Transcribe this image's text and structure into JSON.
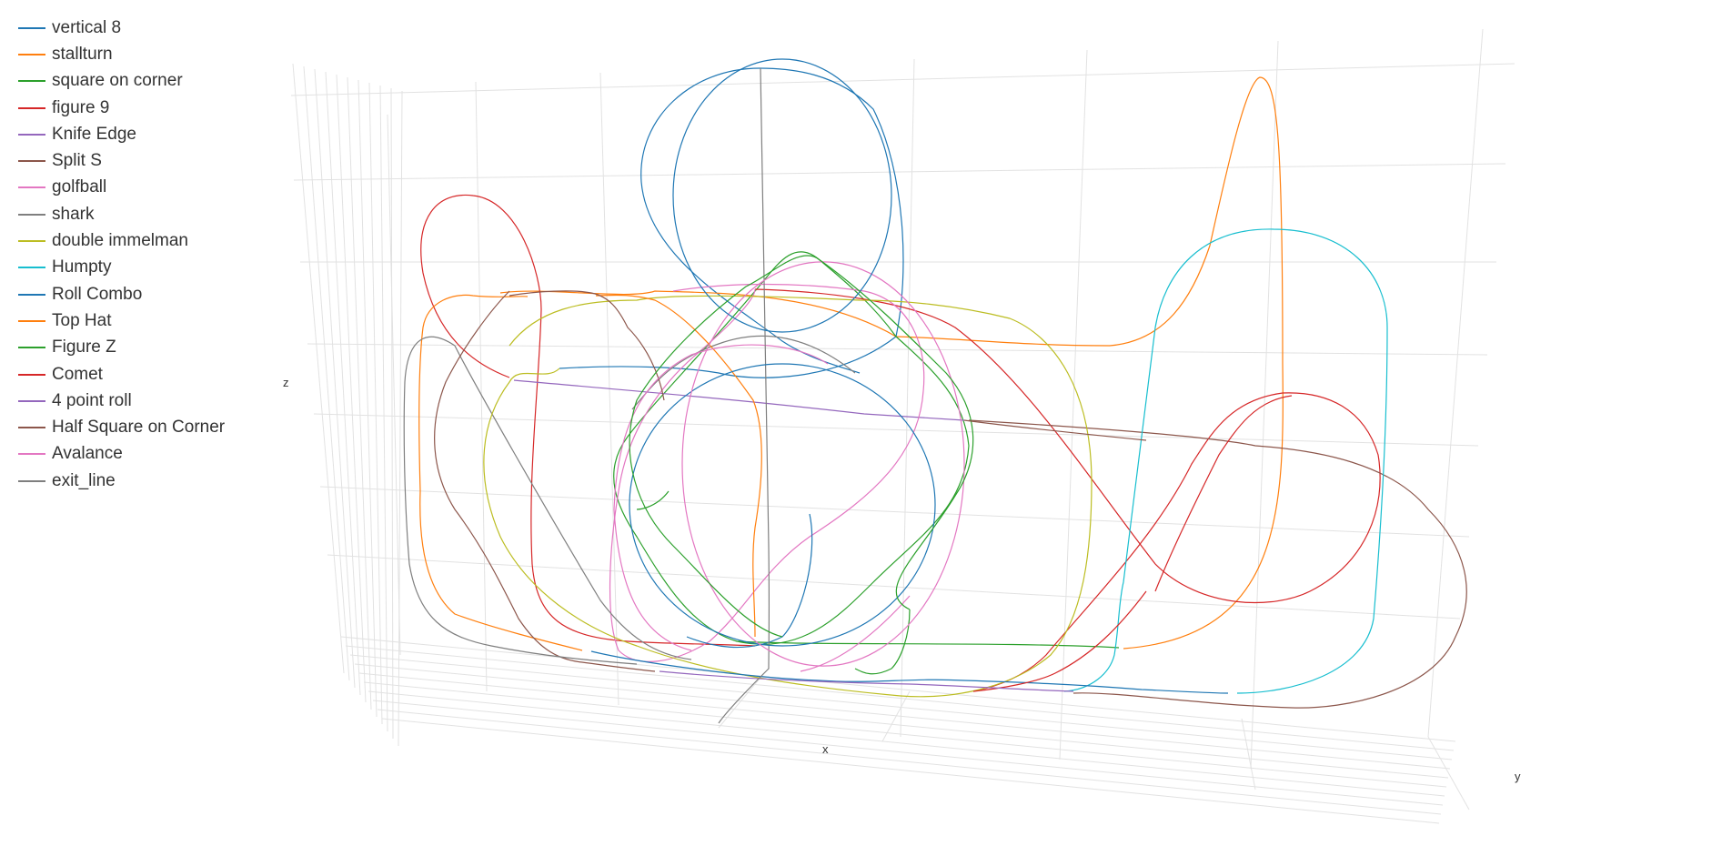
{
  "chart_data": {
    "type": "line3d",
    "title": "",
    "xlabel": "x",
    "ylabel": "y",
    "zlabel": "z",
    "grid": true,
    "legend_position": "top-left",
    "series": [
      {
        "name": "vertical 8",
        "color": "#1f77b4",
        "shape": "loop",
        "c": [
          680,
          160
        ],
        "r": [
          100,
          95
        ]
      },
      {
        "name": "stallturn",
        "color": "#ff7f0e",
        "shape": "stallturn",
        "base": 1010,
        "top": 1125
      },
      {
        "name": "square on corner",
        "color": "#2ca02c",
        "shape": "diamond",
        "c": [
          710,
          400
        ],
        "r": [
          160,
          180
        ]
      },
      {
        "name": "figure 9",
        "color": "#d62728",
        "shape": "figure9",
        "loop_c": [
          420,
          250
        ]
      },
      {
        "name": "Knife Edge",
        "color": "#9467bd",
        "shape": "line",
        "from": [
          560,
          400
        ],
        "to": [
          1060,
          460
        ]
      },
      {
        "name": "Split S",
        "color": "#8c564b",
        "shape": "splits",
        "c": [
          1340,
          610
        ]
      },
      {
        "name": "golfball",
        "color": "#e377c2",
        "shape": "golfball",
        "c": [
          850,
          520
        ]
      },
      {
        "name": "shark",
        "color": "#7f7f7f",
        "shape": "shark",
        "c": [
          450,
          410
        ]
      },
      {
        "name": "double immelman",
        "color": "#bcbd22",
        "shape": "immelman",
        "c": [
          850,
          510
        ]
      },
      {
        "name": "Humpty",
        "color": "#17becf",
        "shape": "humpty",
        "c": [
          1390,
          340
        ]
      },
      {
        "name": "Roll Combo",
        "color": "#1f77b4",
        "shape": "loop",
        "c": [
          860,
          560
        ],
        "r": [
          150,
          150
        ]
      },
      {
        "name": "Top Hat",
        "color": "#ff7f0e",
        "shape": "tophat",
        "c": [
          630,
          420
        ]
      },
      {
        "name": "Figure Z",
        "color": "#2ca02c",
        "shape": "figurez",
        "c": [
          860,
          520
        ]
      },
      {
        "name": "Comet",
        "color": "#d62728",
        "shape": "comet",
        "c": [
          1380,
          550
        ]
      },
      {
        "name": "4 point roll",
        "color": "#9467bd",
        "shape": "line",
        "from": [
          720,
          735
        ],
        "to": [
          1180,
          760
        ]
      },
      {
        "name": "Half Square on Corner",
        "color": "#8c564b",
        "shape": "halfsquare",
        "c": [
          560,
          560
        ]
      },
      {
        "name": "Avalance",
        "color": "#e377c2",
        "shape": "loop",
        "c": [
          900,
          520
        ],
        "r": [
          160,
          210
        ]
      },
      {
        "name": "exit_line",
        "color": "#7f7f7f",
        "shape": "exit",
        "from": [
          835,
          75
        ],
        "to": [
          845,
          730
        ]
      }
    ]
  }
}
